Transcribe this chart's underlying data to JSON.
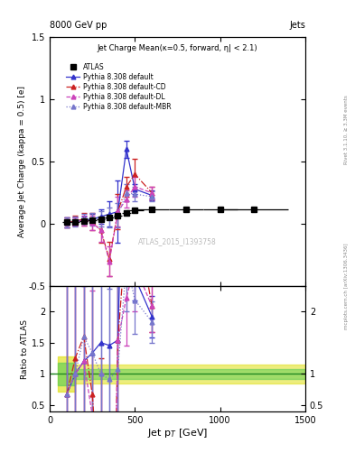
{
  "title_top": "8000 GeV pp",
  "title_right": "Jets",
  "plot_title": "Jet Charge Mean(κ=0.5, forward, η| < 2.1)",
  "xlabel": "Jet p$_T$ [GeV]",
  "ylabel_main": "Average Jet Charge (kappa = 0.5) [e]",
  "ylabel_ratio": "Ratio to ATLAS",
  "right_label1": "Rivet 3.1.10, ≥ 3.3M events",
  "right_label2": "mcplots.cern.ch [arXiv:1306.3436]",
  "watermark": "ATLAS_2015_I1393758",
  "atlas_x": [
    100,
    150,
    200,
    250,
    300,
    350,
    400,
    450,
    500,
    600,
    800,
    1000,
    1200
  ],
  "atlas_y": [
    0.015,
    0.02,
    0.025,
    0.03,
    0.04,
    0.055,
    0.065,
    0.09,
    0.11,
    0.12,
    0.12,
    0.12,
    0.12
  ],
  "atlas_xerr": [
    25,
    25,
    25,
    25,
    25,
    25,
    25,
    25,
    50,
    100,
    100,
    100,
    200
  ],
  "py_def_x": [
    100,
    150,
    200,
    250,
    300,
    350,
    400,
    450,
    500,
    600
  ],
  "py_def_y": [
    0.01,
    0.02,
    0.03,
    0.04,
    0.06,
    0.08,
    0.1,
    0.6,
    0.28,
    0.23
  ],
  "py_def_yerr": [
    0.04,
    0.03,
    0.03,
    0.04,
    0.06,
    0.1,
    0.25,
    0.07,
    0.04,
    0.04
  ],
  "py_cd_x": [
    100,
    150,
    200,
    250,
    300,
    350,
    400,
    450,
    500,
    600
  ],
  "py_cd_y": [
    0.01,
    0.025,
    0.04,
    0.02,
    -0.05,
    -0.28,
    0.1,
    0.3,
    0.4,
    0.25
  ],
  "py_cd_yerr": [
    0.04,
    0.04,
    0.05,
    0.07,
    0.1,
    0.14,
    0.14,
    0.08,
    0.12,
    0.05
  ],
  "py_dl_x": [
    100,
    150,
    200,
    250,
    300,
    350,
    400,
    450,
    500,
    600
  ],
  "py_dl_y": [
    0.01,
    0.02,
    0.03,
    0.01,
    -0.05,
    -0.3,
    0.1,
    0.2,
    0.3,
    0.25
  ],
  "py_dl_yerr": [
    0.04,
    0.03,
    0.04,
    0.06,
    0.09,
    0.12,
    0.12,
    0.07,
    0.08,
    0.05
  ],
  "py_mbr_x": [
    100,
    150,
    200,
    250,
    300,
    350,
    400,
    450,
    500,
    600
  ],
  "py_mbr_y": [
    0.01,
    0.02,
    0.04,
    0.04,
    0.04,
    0.05,
    0.07,
    0.25,
    0.24,
    0.22
  ],
  "py_mbr_yerr": [
    0.04,
    0.04,
    0.04,
    0.05,
    0.06,
    0.08,
    0.1,
    0.07,
    0.06,
    0.04
  ],
  "c_def": "#3333cc",
  "c_cd": "#cc2222",
  "c_dl": "#cc44bb",
  "c_mbr": "#7777cc",
  "xlim": [
    0,
    1500
  ],
  "ylim_main": [
    -0.5,
    1.5
  ],
  "ylim_ratio": [
    0.4,
    2.4
  ],
  "yticks_main": [
    -0.5,
    0.0,
    0.5,
    1.0,
    1.5
  ],
  "yticks_ratio": [
    0.5,
    1.0,
    1.5,
    2.0
  ],
  "xticks": [
    0,
    500,
    1000,
    1500
  ]
}
